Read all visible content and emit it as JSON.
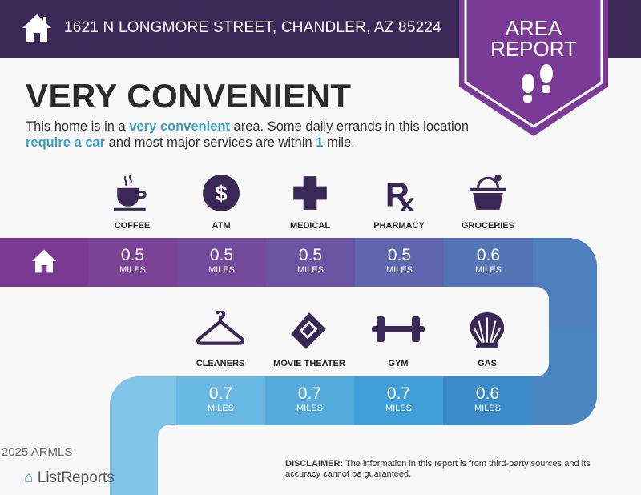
{
  "header": {
    "address": "1621 N LONGMORE STREET, CHANDLER, AZ 85224",
    "badge_line1": "AREA",
    "badge_line2": "REPORT"
  },
  "title": "VERY CONVENIENT",
  "description": {
    "p1": "This home is in a ",
    "h1": "very convenient",
    "p2": " area. Some daily errands in this location ",
    "h2": "require a car",
    "p3": " and most major services are within ",
    "h3": "1",
    "p4": " mile."
  },
  "row1": [
    {
      "label": "COFFEE",
      "value": "0.5",
      "unit": "MILES",
      "icon": "coffee-icon"
    },
    {
      "label": "ATM",
      "value": "0.5",
      "unit": "MILES",
      "icon": "atm-icon"
    },
    {
      "label": "MEDICAL",
      "value": "0.5",
      "unit": "MILES",
      "icon": "medical-icon"
    },
    {
      "label": "PHARMACY",
      "value": "0.5",
      "unit": "MILES",
      "icon": "pharmacy-icon"
    },
    {
      "label": "GROCERIES",
      "value": "0.6",
      "unit": "MILES",
      "icon": "groceries-icon"
    }
  ],
  "row2": [
    {
      "label": "CLEANERS",
      "value": "0.7",
      "unit": "MILES",
      "icon": "hanger-icon"
    },
    {
      "label": "MOVIE THEATER",
      "value": "0.7",
      "unit": "MILES",
      "icon": "ticket-icon"
    },
    {
      "label": "GYM",
      "value": "0.7",
      "unit": "MILES",
      "icon": "dumbbell-icon"
    },
    {
      "label": "GAS",
      "value": "0.6",
      "unit": "MILES",
      "icon": "shell-icon"
    }
  ],
  "footer": {
    "disclaimer_label": "DISCLAIMER:",
    "disclaimer": " The information in this report is from third-party sources and its accuracy cannot be guaranteed.",
    "logo": "ListReports",
    "watermark": "2025 ARMLS"
  },
  "colors": {
    "header": "#3b2857",
    "badge": "#7b3a96",
    "icon": "#3b2857",
    "accent": "#3aa0c8"
  }
}
